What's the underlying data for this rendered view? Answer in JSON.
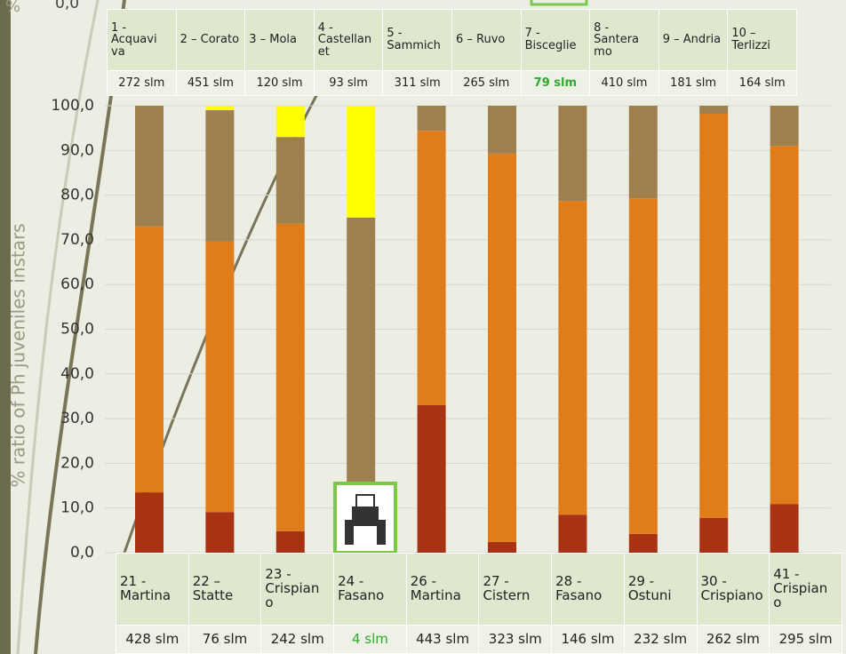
{
  "cropped_texts": [
    "%",
    "0,0"
  ],
  "chart_data": {
    "type": "stacked-bar",
    "y_label": "% ratio of Ph juveniles instars",
    "categories": [
      null,
      null,
      null,
      null,
      null,
      null,
      null,
      null,
      null,
      null
    ],
    "ylim": [
      0,
      100
    ],
    "yticks": [
      {
        "value": 0,
        "label": "0,0"
      },
      {
        "value": 10,
        "label": "10,0"
      },
      {
        "value": 20,
        "label": "20,0"
      },
      {
        "value": 30,
        "label": "30,0"
      },
      {
        "value": 40,
        "label": "40,0"
      },
      {
        "value": 50,
        "label": "50,0"
      },
      {
        "value": 60,
        "label": "60,0"
      },
      {
        "value": 70,
        "label": "70,0"
      },
      {
        "value": 80,
        "label": "80,0"
      },
      {
        "value": 90,
        "label": "90,0"
      },
      {
        "value": 100,
        "label": "100,0"
      }
    ],
    "grid": true,
    "series": [
      {
        "color": "#a83212",
        "values": [
          13.5,
          9.1,
          4.8,
          0,
          33,
          2.4,
          8.5,
          4.2,
          7.8,
          10.9
        ]
      },
      {
        "color": "#e07c1a",
        "values": [
          59.5,
          60.5,
          68.8,
          0,
          61.4,
          86.9,
          70.2,
          75.1,
          90.4,
          80.1
        ]
      },
      {
        "color": "#9e7f4e",
        "values": [
          27,
          29.4,
          19.4,
          75,
          5.6,
          10.7,
          21.3,
          20.7,
          1.8,
          9
        ]
      },
      {
        "color": "#ffff00",
        "values": [
          0,
          1,
          7,
          25,
          0,
          0,
          0,
          0,
          0,
          0
        ]
      }
    ]
  },
  "top_table": {
    "highlight": 6,
    "names": [
      "1 - Acquavi va",
      "2 – Corato",
      "3 – Mola",
      "4 - Castellan et",
      "5 - Sammich",
      "6 – Ruvo",
      "7 - Bisceglie",
      "8 - Santera mo",
      "9 – Andria",
      "10 – Terlizzi"
    ],
    "altitudes": [
      "272 slm",
      "451 slm",
      "120 slm",
      "93 slm",
      "311 slm",
      "265 slm",
      "79 slm",
      "410 slm",
      "181 slm",
      "164 slm"
    ]
  },
  "bottom_table": {
    "highlight": 3,
    "names": [
      "21 - Martina",
      "22 – Statte",
      "23 - Crispian o",
      "24 - Fasano",
      "26 - Martina",
      "27 - Cistern",
      "28 - Fasano",
      "29 - Ostuni",
      "30 - Crispiano",
      "41 - Crispian o"
    ],
    "altitudes": [
      "428 slm",
      "76 slm",
      "242 slm",
      "4 slm",
      "443 slm",
      "323 slm",
      "146 slm",
      "232 slm",
      "262 slm",
      "295 slm"
    ]
  }
}
